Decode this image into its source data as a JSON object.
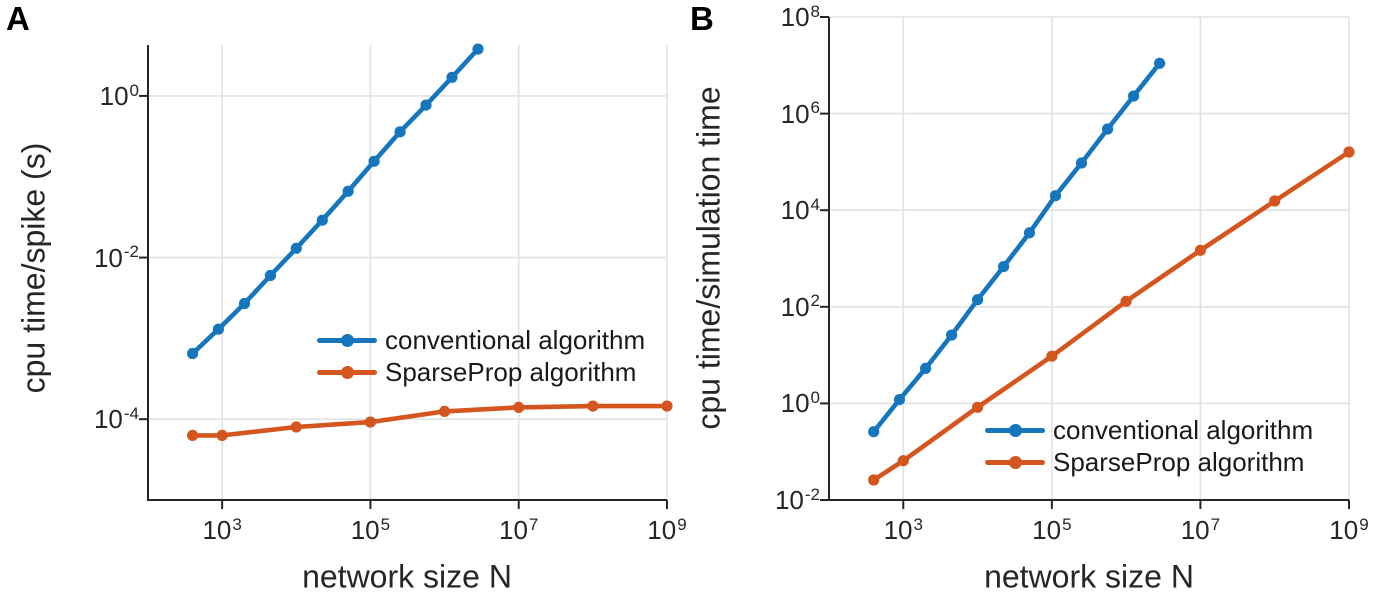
{
  "figure": {
    "panels": [
      {
        "label": "A"
      },
      {
        "label": "B"
      }
    ]
  },
  "chart_data": [
    {
      "id": "A",
      "type": "line",
      "title": "",
      "xlabel": "network size N",
      "ylabel": "cpu time/spike (s)",
      "xscale": "log",
      "yscale": "log",
      "grid": true,
      "legend_position": "inside middle-right",
      "xlim_exp": [
        2,
        9
      ],
      "ylim_exp": [
        -5,
        0.63
      ],
      "xtick_exponents": [
        3,
        5,
        7,
        9
      ],
      "ytick_exponents": [
        0,
        -2,
        -4
      ],
      "series": [
        {
          "name": "conventional algorithm",
          "color": "#1575bd",
          "x": [
            400,
            890,
            2000,
            4470,
            10000,
            22400,
            50000,
            112000,
            251000,
            562000,
            1260000,
            2820000
          ],
          "y": [
            0.00065,
            0.0013,
            0.0027,
            0.006,
            0.013,
            0.029,
            0.066,
            0.155,
            0.36,
            0.77,
            1.7,
            3.8
          ]
        },
        {
          "name": "SparseProp algorithm",
          "color": "#d4551e",
          "x": [
            400,
            1000,
            10000,
            100000,
            1000000,
            10000000,
            100000000,
            1000000000
          ],
          "y": [
            6.3e-05,
            6.3e-05,
            8e-05,
            9.2e-05,
            0.000125,
            0.00014,
            0.000145,
            0.000145
          ]
        }
      ]
    },
    {
      "id": "B",
      "type": "line",
      "title": "",
      "xlabel": "network size N",
      "ylabel": "cpu time/simulation time",
      "xscale": "log",
      "yscale": "log",
      "grid": true,
      "legend_position": "inside bottom-right",
      "xlim_exp": [
        2,
        9
      ],
      "ylim_exp": [
        -2,
        8
      ],
      "xtick_exponents": [
        3,
        5,
        7,
        9
      ],
      "ytick_exponents": [
        8,
        6,
        4,
        2,
        0,
        -2
      ],
      "series": [
        {
          "name": "conventional algorithm",
          "color": "#1575bd",
          "x": [
            400,
            890,
            2000,
            4470,
            10000,
            22400,
            50000,
            112000,
            251000,
            562000,
            1260000,
            2820000
          ],
          "y": [
            0.26,
            1.2,
            5.3,
            26,
            140,
            680,
            3400,
            20000,
            95000,
            480000,
            2300000,
            11000000
          ]
        },
        {
          "name": "SparseProp algorithm",
          "color": "#d4551e",
          "x": [
            400,
            1000,
            10000,
            100000,
            1000000,
            10000000,
            100000000,
            1000000000
          ],
          "y": [
            0.026,
            0.065,
            0.83,
            9.5,
            130,
            1480,
            15500,
            160000
          ]
        }
      ]
    }
  ]
}
